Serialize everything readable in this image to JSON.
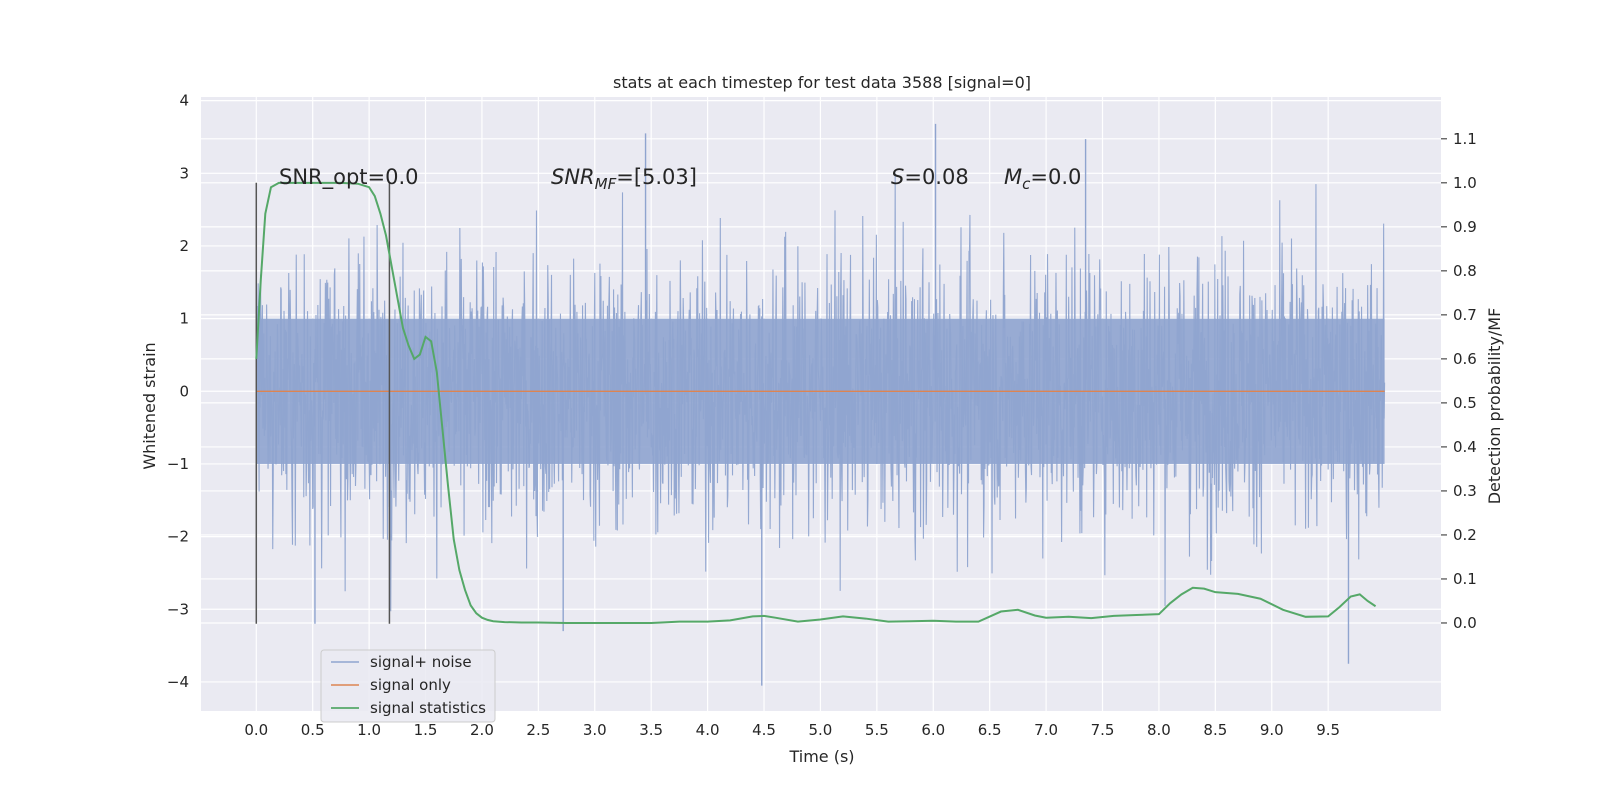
{
  "chart_data": {
    "type": "line",
    "title": "stats at each timestep for test data 3588 [signal=0]",
    "xlabel": "Time (s)",
    "ylabel": "Whitened strain",
    "y2label": "Detection probability/MF",
    "xlim": [
      -0.49,
      10.5
    ],
    "ylim": [
      -4.4,
      4.05
    ],
    "y2lim": [
      -0.2,
      1.195
    ],
    "x_ticks": [
      0.0,
      0.5,
      1.0,
      1.5,
      2.0,
      2.5,
      3.0,
      3.5,
      4.0,
      4.5,
      5.0,
      5.5,
      6.0,
      6.5,
      7.0,
      7.5,
      8.0,
      8.5,
      9.0,
      9.5
    ],
    "x_tick_labels": [
      "0.0",
      "0.5",
      "1.0",
      "1.5",
      "2.0",
      "2.5",
      "3.0",
      "3.5",
      "4.0",
      "4.5",
      "5.0",
      "5.5",
      "6.0",
      "6.5",
      "7.0",
      "7.5",
      "8.0",
      "8.5",
      "9.0",
      "9.5"
    ],
    "y_ticks": [
      -4,
      -3,
      -2,
      -1,
      0,
      1,
      2,
      3,
      4
    ],
    "y_tick_labels": [
      "−4",
      "−3",
      "−2",
      "−1",
      "0",
      "1",
      "2",
      "3",
      "4"
    ],
    "y2_ticks": [
      0.0,
      0.1,
      0.2,
      0.3,
      0.4,
      0.5,
      0.6,
      0.7,
      0.8,
      0.9,
      1.0,
      1.1
    ],
    "y2_tick_labels": [
      "0.0",
      "0.1",
      "0.2",
      "0.3",
      "0.4",
      "0.5",
      "0.6",
      "0.7",
      "0.8",
      "0.9",
      "1.0",
      "1.1"
    ],
    "grid": true,
    "legend_placement": "lower-left",
    "annotations": {
      "snr_opt": "SNR_opt=0.0",
      "snr_mf_italic": "SNR",
      "snr_mf_sub": "MF",
      "snr_mf_value": "=[5.03]",
      "s_italic": "S",
      "s_value": "=0.08",
      "mc_italic": "M",
      "mc_sub": "c",
      "mc_value": "=0.0"
    },
    "vertical_markers_x": [
      0.0,
      1.18
    ],
    "series": [
      {
        "name": "signal+ noise",
        "color": "#8fa4cf",
        "style": "dense noise band approx ±1 sigma, peaks to about ±3.5",
        "x_range": [
          0.0,
          10.0
        ],
        "notable_extremes": [
          {
            "x": 3.45,
            "y": 3.55
          },
          {
            "x": 6.02,
            "y": 3.68
          },
          {
            "x": 7.35,
            "y": 3.47
          },
          {
            "x": 4.48,
            "y": -4.05
          },
          {
            "x": 9.68,
            "y": -3.75
          },
          {
            "x": 0.52,
            "y": -3.2
          },
          {
            "x": 2.72,
            "y": -3.3
          }
        ]
      },
      {
        "name": "signal only",
        "color": "#dd8452",
        "x": [
          0.0,
          10.0
        ],
        "y": [
          0.0,
          0.0
        ]
      },
      {
        "name": "signal statistics",
        "color": "#55a868",
        "x": [
          0.0,
          0.04,
          0.08,
          0.13,
          0.2,
          0.3,
          0.45,
          0.6,
          0.75,
          0.9,
          1.0,
          1.05,
          1.1,
          1.15,
          1.2,
          1.25,
          1.3,
          1.35,
          1.4,
          1.45,
          1.5,
          1.55,
          1.6,
          1.65,
          1.7,
          1.75,
          1.8,
          1.85,
          1.9,
          1.95,
          2.0,
          2.05,
          2.1,
          2.2,
          2.35,
          2.5,
          2.75,
          3.0,
          3.25,
          3.5,
          3.75,
          4.0,
          4.2,
          4.4,
          4.5,
          4.6,
          4.8,
          5.0,
          5.2,
          5.4,
          5.6,
          5.8,
          6.0,
          6.2,
          6.4,
          6.6,
          6.75,
          6.9,
          7.0,
          7.2,
          7.4,
          7.6,
          7.8,
          8.0,
          8.1,
          8.2,
          8.3,
          8.4,
          8.5,
          8.7,
          8.9,
          9.1,
          9.3,
          9.5,
          9.6,
          9.7,
          9.78,
          9.85,
          9.92
        ],
        "y": [
          0.6,
          0.78,
          0.93,
          0.99,
          1.0,
          1.0,
          1.0,
          1.0,
          1.0,
          0.998,
          0.99,
          0.97,
          0.93,
          0.88,
          0.81,
          0.74,
          0.67,
          0.63,
          0.6,
          0.61,
          0.65,
          0.64,
          0.57,
          0.44,
          0.31,
          0.19,
          0.12,
          0.075,
          0.04,
          0.022,
          0.012,
          0.007,
          0.004,
          0.002,
          0.001,
          0.001,
          0.0,
          0.0,
          0.0,
          0.0,
          0.003,
          0.003,
          0.006,
          0.015,
          0.016,
          0.012,
          0.003,
          0.008,
          0.015,
          0.01,
          0.003,
          0.004,
          0.005,
          0.003,
          0.003,
          0.026,
          0.03,
          0.017,
          0.012,
          0.014,
          0.011,
          0.016,
          0.018,
          0.02,
          0.045,
          0.065,
          0.08,
          0.078,
          0.07,
          0.066,
          0.055,
          0.03,
          0.014,
          0.015,
          0.036,
          0.06,
          0.065,
          0.05,
          0.038
        ]
      }
    ]
  }
}
